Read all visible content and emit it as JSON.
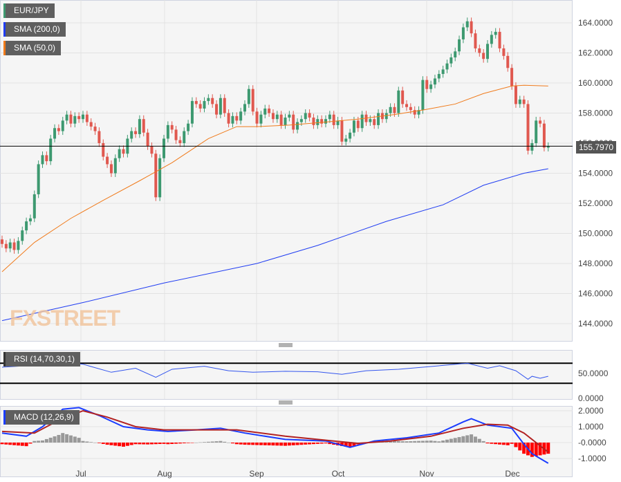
{
  "legend": {
    "symbol": "EUR/JPY",
    "sma200": "SMA (200,0)",
    "sma50": "SMA (50,0)",
    "rsi": "RSI (14,70,30,1)",
    "macd": "MACD (12,26,9)"
  },
  "colors": {
    "up": "#3d9970",
    "down": "#e0584f",
    "sma200": "#1f3cf2",
    "sma50": "#f07a1a",
    "macd": "#1a3cff",
    "signal": "#b22222",
    "hist_pos": "#999999",
    "hist_neg": "#ff0000"
  },
  "watermark": "FXSTREET",
  "last_price": "155.7970",
  "chart_data": {
    "type": "candlestick",
    "x_tick_labels": [
      "Jul",
      "Aug",
      "Sep",
      "Oct",
      "Nov",
      "Dec"
    ],
    "y_tick_labels": [
      "164.0000",
      "162.0000",
      "160.0000",
      "158.0000",
      "156.0000",
      "154.0000",
      "152.0000",
      "150.0000",
      "148.0000",
      "146.0000",
      "144.0000"
    ],
    "ylim": [
      143.8,
      164.9
    ],
    "first_open": 149.6,
    "closes": [
      149.3,
      149.0,
      149.4,
      148.9,
      149.5,
      150.2,
      150.8,
      151.0,
      152.6,
      154.6,
      155.2,
      154.8,
      156.3,
      157.0,
      156.8,
      157.5,
      157.9,
      157.3,
      157.8,
      157.6,
      157.9,
      157.4,
      157.1,
      156.8,
      156.0,
      155.1,
      154.6,
      154.0,
      155.0,
      155.6,
      155.3,
      156.3,
      156.8,
      156.6,
      157.6,
      156.7,
      155.8,
      155.3,
      152.4,
      155.0,
      156.3,
      157.2,
      156.9,
      156.2,
      156.0,
      156.8,
      157.3,
      158.8,
      158.6,
      158.3,
      158.8,
      159.0,
      158.6,
      157.9,
      159.0,
      158.0,
      157.3,
      157.8,
      157.5,
      158.1,
      158.6,
      159.6,
      158.1,
      157.3,
      157.9,
      158.3,
      158.0,
      157.6,
      157.9,
      157.2,
      157.7,
      157.9,
      156.9,
      157.4,
      157.6,
      158.0,
      157.7,
      157.2,
      157.6,
      157.3,
      157.6,
      157.9,
      157.2,
      157.5,
      156.1,
      156.3,
      156.7,
      157.5,
      157.0,
      157.9,
      157.4,
      157.6,
      157.2,
      158.0,
      157.6,
      158.0,
      158.4,
      158.0,
      159.5,
      158.6,
      158.4,
      158.2,
      157.9,
      158.2,
      160.2,
      159.6,
      159.9,
      160.3,
      160.6,
      160.9,
      161.3,
      161.7,
      162.1,
      162.9,
      163.7,
      164.1,
      163.3,
      162.3,
      162.0,
      161.6,
      162.6,
      163.2,
      163.4,
      162.3,
      161.8,
      161.0,
      159.8,
      158.6,
      158.9,
      158.6,
      155.5,
      156.0,
      157.5,
      157.3,
      155.7,
      155.8
    ],
    "sma200": [
      [
        0,
        144.2
      ],
      [
        20,
        145.4
      ],
      [
        40,
        146.7
      ],
      [
        63,
        148.0
      ],
      [
        78,
        149.2
      ],
      [
        95,
        150.8
      ],
      [
        109,
        151.9
      ],
      [
        119,
        153.2
      ],
      [
        129,
        154.0
      ],
      [
        135,
        154.3
      ]
    ],
    "sma50": [
      [
        0,
        147.45
      ],
      [
        8,
        149.4
      ],
      [
        17,
        151.0
      ],
      [
        25,
        152.2
      ],
      [
        34,
        153.5
      ],
      [
        42,
        154.7
      ],
      [
        51,
        156.3
      ],
      [
        58,
        157.1
      ],
      [
        63,
        157.1
      ],
      [
        71,
        157.2
      ],
      [
        80,
        157.4
      ],
      [
        88,
        157.6
      ],
      [
        97,
        157.9
      ],
      [
        104,
        158.2
      ],
      [
        112,
        158.6
      ],
      [
        119,
        159.3
      ],
      [
        126,
        159.8
      ],
      [
        129,
        159.85
      ],
      [
        135,
        159.8
      ]
    ],
    "rsi": {
      "y_tick_labels": [
        "50.0000",
        "0.0000"
      ],
      "levels": [
        70,
        30
      ],
      "values": [
        [
          0,
          62
        ],
        [
          8,
          66
        ],
        [
          15,
          72
        ],
        [
          20,
          68
        ],
        [
          27,
          52
        ],
        [
          33,
          60
        ],
        [
          38,
          42
        ],
        [
          42,
          58
        ],
        [
          50,
          64
        ],
        [
          56,
          55
        ],
        [
          62,
          52
        ],
        [
          70,
          54
        ],
        [
          78,
          53
        ],
        [
          84,
          48
        ],
        [
          90,
          55
        ],
        [
          98,
          58
        ],
        [
          104,
          62
        ],
        [
          115,
          70
        ],
        [
          120,
          60
        ],
        [
          123,
          65
        ],
        [
          127,
          55
        ],
        [
          130,
          38
        ],
        [
          131,
          44
        ],
        [
          133,
          40
        ],
        [
          135,
          44
        ]
      ]
    },
    "macd": {
      "y_tick_labels": [
        "2.0000",
        "1.0000",
        "-0.0000",
        "-1.0000"
      ],
      "macd": [
        [
          0,
          0.6
        ],
        [
          6,
          0.4
        ],
        [
          10,
          1.0
        ],
        [
          15,
          2.1
        ],
        [
          19,
          2.2
        ],
        [
          24,
          1.7
        ],
        [
          30,
          1.0
        ],
        [
          36,
          0.8
        ],
        [
          41,
          0.7
        ],
        [
          48,
          0.8
        ],
        [
          54,
          0.9
        ],
        [
          60,
          0.6
        ],
        [
          70,
          0.2
        ],
        [
          80,
          0.1
        ],
        [
          86,
          -0.3
        ],
        [
          92,
          0.1
        ],
        [
          100,
          0.3
        ],
        [
          108,
          0.6
        ],
        [
          114,
          1.3
        ],
        [
          116,
          1.5
        ],
        [
          120,
          1.1
        ],
        [
          126,
          0.9
        ],
        [
          129,
          -0.1
        ],
        [
          131,
          -0.7
        ],
        [
          135,
          -1.3
        ]
      ],
      "signal": [
        [
          0,
          0.7
        ],
        [
          8,
          0.6
        ],
        [
          14,
          1.4
        ],
        [
          20,
          2.0
        ],
        [
          26,
          1.6
        ],
        [
          33,
          1.0
        ],
        [
          40,
          0.8
        ],
        [
          50,
          0.8
        ],
        [
          58,
          0.8
        ],
        [
          70,
          0.4
        ],
        [
          82,
          0.1
        ],
        [
          88,
          -0.05
        ],
        [
          96,
          0.1
        ],
        [
          106,
          0.4
        ],
        [
          114,
          0.9
        ],
        [
          120,
          1.15
        ],
        [
          125,
          1.1
        ],
        [
          129,
          0.6
        ],
        [
          132,
          0.0
        ],
        [
          135,
          -0.6
        ]
      ]
    }
  }
}
